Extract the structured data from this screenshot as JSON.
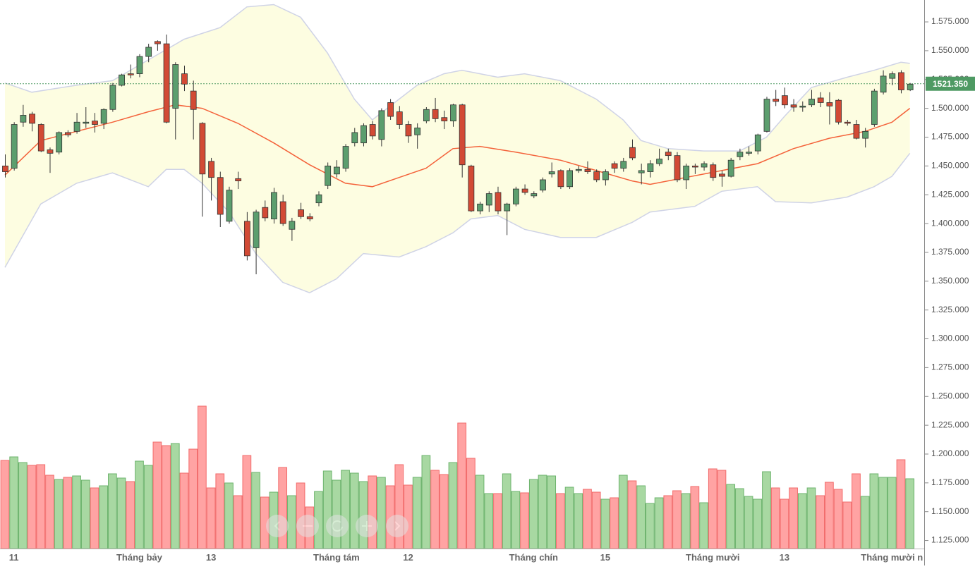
{
  "chart_data": {
    "type": "candlestick",
    "open": [
      1450,
      1448,
      1488,
      1495,
      1486,
      1464,
      1462,
      1479,
      1480,
      1487,
      1489,
      1487,
      1499,
      1520,
      1530,
      1530,
      1545,
      1558,
      1556,
      1500,
      1530,
      1515,
      1487,
      1454,
      1440,
      1402,
      1439,
      1402,
      1379,
      1414,
      1404,
      1419,
      1395,
      1412,
      1406,
      1418,
      1433,
      1443,
      1448,
      1470,
      1470,
      1486,
      1473,
      1505,
      1497,
      1486,
      1477,
      1489,
      1499,
      1492,
      1489,
      1503,
      1450,
      1411,
      1416,
      1427,
      1411,
      1417,
      1430,
      1424,
      1429,
      1443,
      1446,
      1432,
      1446,
      1447,
      1445,
      1438,
      1452,
      1448,
      1466,
      1444,
      1445,
      1452,
      1462,
      1459,
      1438,
      1450,
      1449,
      1451,
      1443,
      1441,
      1458,
      1461,
      1463,
      1480,
      1508,
      1511,
      1503,
      1501,
      1503,
      1509,
      1505,
      1507,
      1488,
      1486,
      1474,
      1486,
      1514,
      1526,
      1531,
      1516
    ],
    "high": [
      1460,
      1488,
      1503,
      1497,
      1487,
      1466,
      1480,
      1481,
      1496,
      1501,
      1496,
      1500,
      1522,
      1530,
      1538,
      1547,
      1556,
      1559,
      1564,
      1540,
      1537,
      1524,
      1488,
      1457,
      1445,
      1432,
      1445,
      1410,
      1412,
      1420,
      1431,
      1425,
      1405,
      1418,
      1409,
      1428,
      1453,
      1455,
      1469,
      1483,
      1487,
      1489,
      1500,
      1508,
      1502,
      1489,
      1487,
      1501,
      1509,
      1498,
      1504,
      1504,
      1451,
      1419,
      1428,
      1432,
      1418,
      1432,
      1434,
      1428,
      1440,
      1453,
      1447,
      1448,
      1450,
      1454,
      1447,
      1447,
      1454,
      1457,
      1473,
      1452,
      1455,
      1465,
      1465,
      1462,
      1452,
      1452,
      1454,
      1453,
      1446,
      1457,
      1465,
      1467,
      1478,
      1510,
      1516,
      1518,
      1508,
      1506,
      1516,
      1514,
      1514,
      1508,
      1490,
      1490,
      1483,
      1517,
      1533,
      1532,
      1533,
      1522
    ],
    "low": [
      1440,
      1446,
      1484,
      1480,
      1462,
      1444,
      1460,
      1475,
      1478,
      1483,
      1479,
      1482,
      1497,
      1519,
      1526,
      1527,
      1540,
      1550,
      1487,
      1473,
      1515,
      1473,
      1406,
      1420,
      1397,
      1400,
      1430,
      1368,
      1356,
      1402,
      1400,
      1398,
      1385,
      1404,
      1402,
      1415,
      1430,
      1440,
      1445,
      1467,
      1467,
      1473,
      1467,
      1490,
      1482,
      1470,
      1465,
      1487,
      1488,
      1482,
      1484,
      1440,
      1410,
      1408,
      1410,
      1408,
      1390,
      1415,
      1425,
      1422,
      1427,
      1440,
      1430,
      1430,
      1444,
      1443,
      1436,
      1433,
      1444,
      1445,
      1455,
      1434,
      1440,
      1450,
      1455,
      1436,
      1430,
      1443,
      1446,
      1437,
      1432,
      1440,
      1455,
      1459,
      1460,
      1479,
      1502,
      1500,
      1497,
      1497,
      1501,
      1501,
      1486,
      1486,
      1485,
      1473,
      1466,
      1484,
      1512,
      1520,
      1513,
      1515
    ],
    "close": [
      1445,
      1486,
      1494,
      1487,
      1463,
      1461,
      1479,
      1477,
      1488,
      1488,
      1486,
      1499,
      1520,
      1529,
      1529,
      1545,
      1553,
      1556,
      1488,
      1538,
      1521,
      1499,
      1443,
      1440,
      1408,
      1429,
      1437,
      1372,
      1410,
      1405,
      1427,
      1400,
      1402,
      1406,
      1404,
      1425,
      1450,
      1449,
      1467,
      1479,
      1485,
      1476,
      1498,
      1493,
      1486,
      1476,
      1483,
      1499,
      1491,
      1489,
      1503,
      1451,
      1411,
      1417,
      1426,
      1411,
      1417,
      1430,
      1427,
      1426,
      1438,
      1445,
      1432,
      1446,
      1447,
      1445,
      1438,
      1445,
      1448,
      1454,
      1457,
      1446,
      1452,
      1456,
      1459,
      1438,
      1450,
      1449,
      1452,
      1440,
      1441,
      1455,
      1462,
      1462,
      1477,
      1508,
      1506,
      1503,
      1501,
      1502,
      1508,
      1505,
      1502,
      1488,
      1487,
      1474,
      1480,
      1515,
      1528,
      1530,
      1516,
      1521
    ],
    "volume": [
      125,
      130,
      122,
      118,
      119,
      104,
      98,
      101,
      103,
      97,
      86,
      89,
      106,
      100,
      95,
      124,
      118,
      151,
      146,
      149,
      107,
      141,
      202,
      86,
      106,
      93,
      75,
      132,
      108,
      73,
      80,
      115,
      75,
      93,
      59,
      81,
      110,
      97,
      111,
      107,
      95,
      103,
      101,
      89,
      119,
      90,
      101,
      132,
      111,
      105,
      122,
      178,
      128,
      104,
      78,
      78,
      106,
      81,
      79,
      98,
      104,
      103,
      78,
      87,
      78,
      84,
      80,
      70,
      72,
      104,
      96,
      89,
      64,
      72,
      75,
      82,
      78,
      88,
      65,
      113,
      111,
      91,
      85,
      74,
      70,
      109,
      86,
      70,
      86,
      78,
      86,
      75,
      94,
      84,
      66,
      106,
      74,
      106,
      101,
      101,
      126,
      99
    ],
    "up_color": "#5c9e6e",
    "down_color": "#d24a35",
    "volume_up_color": "#a8d8a2",
    "volume_down_color": "#ffa3a3",
    "ma": {
      "color": "#f4623a",
      "x": [
        0,
        4,
        8,
        12,
        16,
        19,
        22,
        26,
        30,
        34,
        38,
        41,
        44,
        47,
        50,
        53,
        57,
        62,
        66,
        70,
        72,
        76,
        80,
        84,
        88,
        92,
        96,
        99,
        101
      ],
      "values": [
        1442,
        1472,
        1480,
        1488,
        1497,
        1503,
        1500,
        1487,
        1470,
        1451,
        1435,
        1432,
        1440,
        1448,
        1465,
        1467,
        1462,
        1455,
        1446,
        1437,
        1434,
        1440,
        1446,
        1452,
        1465,
        1474,
        1480,
        1488,
        1500
      ]
    },
    "upper_band": {
      "color": "#cfd3e6",
      "x": [
        0,
        3,
        8,
        12,
        16,
        20,
        24,
        27,
        30,
        33,
        36,
        39,
        41,
        43,
        46,
        49,
        51,
        55,
        58,
        62,
        66,
        69,
        71,
        74,
        78,
        82,
        85,
        87,
        90,
        94,
        97,
        100,
        101
      ],
      "values": [
        1522,
        1514,
        1520,
        1524,
        1542,
        1560,
        1570,
        1588,
        1590,
        1579,
        1548,
        1508,
        1490,
        1502,
        1520,
        1530,
        1533,
        1527,
        1530,
        1524,
        1508,
        1490,
        1472,
        1465,
        1463,
        1463,
        1475,
        1493,
        1518,
        1527,
        1533,
        1540,
        1539
      ]
    },
    "lower_band": {
      "color": "#cfd3e6",
      "x": [
        0,
        4,
        8,
        12,
        16,
        18,
        20,
        22,
        25,
        28,
        31,
        34,
        37,
        40,
        44,
        47,
        50,
        52,
        55,
        58,
        62,
        66,
        70,
        72,
        74,
        77,
        80,
        84,
        86,
        90,
        94,
        97,
        99,
        101
      ],
      "values": [
        1362,
        1417,
        1435,
        1444,
        1432,
        1447,
        1447,
        1435,
        1410,
        1374,
        1349,
        1340,
        1352,
        1374,
        1371,
        1380,
        1392,
        1404,
        1407,
        1395,
        1388,
        1388,
        1401,
        1410,
        1412,
        1415,
        1428,
        1432,
        1419,
        1418,
        1423,
        1432,
        1441,
        1461
      ]
    },
    "band_fill": "#fdfde1",
    "last_price": {
      "value": 1521.35,
      "label": "1521.350",
      "color": "#4e9a63"
    },
    "xlim": [
      -0.55,
      102.6
    ],
    "ylim": [
      1118,
      1594
    ],
    "xticks": [
      {
        "value": 1,
        "label": "11"
      },
      {
        "value": 15,
        "label": "Tháng bảy"
      },
      {
        "value": 23,
        "label": "13"
      },
      {
        "value": 37,
        "label": "Tháng tám"
      },
      {
        "value": 45,
        "label": "12"
      },
      {
        "value": 59,
        "label": "Tháng chín"
      },
      {
        "value": 67,
        "label": "15"
      },
      {
        "value": 79,
        "label": "Tháng mười"
      },
      {
        "value": 87,
        "label": "13"
      },
      {
        "value": 99,
        "label": "Tháng mười n"
      }
    ],
    "yticks": [
      {
        "value": 1125,
        "label": "1.125.000"
      },
      {
        "value": 1150,
        "label": "1.150.000"
      },
      {
        "value": 1175,
        "label": "1.175.000"
      },
      {
        "value": 1200,
        "label": "1.200.000"
      },
      {
        "value": 1225,
        "label": "1.225.000"
      },
      {
        "value": 1250,
        "label": "1.250.000"
      },
      {
        "value": 1275,
        "label": "1.275.000"
      },
      {
        "value": 1300,
        "label": "1.300.000"
      },
      {
        "value": 1325,
        "label": "1.325.000"
      },
      {
        "value": 1350,
        "label": "1.350.000"
      },
      {
        "value": 1375,
        "label": "1.375.000"
      },
      {
        "value": 1400,
        "label": "1.400.000"
      },
      {
        "value": 1425,
        "label": "1.425.000"
      },
      {
        "value": 1450,
        "label": "1.450.000"
      },
      {
        "value": 1475,
        "label": "1.475.000"
      },
      {
        "value": 1500,
        "label": "1.500.000"
      },
      {
        "value": 1525,
        "label": "1.525.000"
      },
      {
        "value": 1550,
        "label": "1.550.000"
      },
      {
        "value": 1575,
        "label": "1.575.000"
      }
    ]
  }
}
